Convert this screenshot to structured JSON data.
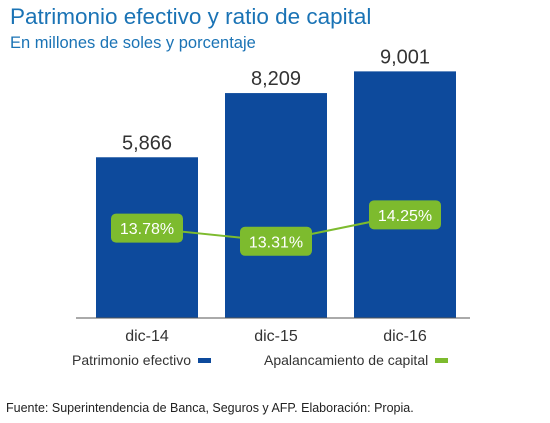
{
  "chart_data": {
    "type": "bar",
    "title": "Patrimonio efectivo y ratio de capital",
    "subtitle": "En millones de soles y porcentaje",
    "categories": [
      "dic-14",
      "dic-15",
      "dic-16"
    ],
    "series": [
      {
        "name": "Patrimonio efectivo",
        "type": "bar",
        "values": [
          5866,
          8209,
          9001
        ],
        "labels": [
          "5,866",
          "8,209",
          "9,001"
        ],
        "color": "#0d4a9c"
      },
      {
        "name": "Apalancamiento de capital",
        "type": "line",
        "values": [
          13.78,
          13.31,
          14.25
        ],
        "labels": [
          "13.78%",
          "13.31%",
          "14.25%"
        ],
        "color": "#7dbb2e"
      }
    ],
    "ylim": [
      0,
      10000
    ],
    "grid": false,
    "legend": "bottom"
  },
  "source": "Fuente: Superintendencia de Banca, Seguros y AFP. Elaboración: Propia."
}
